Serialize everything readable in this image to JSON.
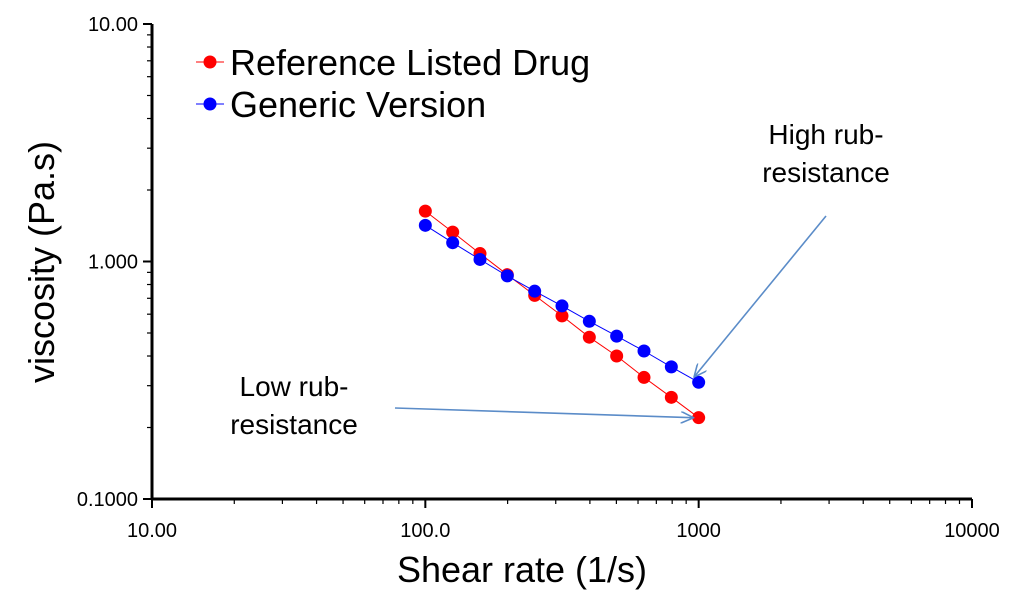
{
  "chart_data": {
    "type": "scatter",
    "x_scale": "log",
    "y_scale": "log",
    "xlim": [
      10,
      10000
    ],
    "ylim": [
      0.1,
      10
    ],
    "xlabel": "Shear rate (1/s)",
    "ylabel": "viscosity (Pa.s)",
    "x_tick_labels": [
      "10.00",
      "100.0",
      "1000",
      "10000"
    ],
    "x_tick_values": [
      10,
      100,
      1000,
      10000
    ],
    "y_tick_labels": [
      "0.1000",
      "1.000",
      "10.00"
    ],
    "y_tick_values": [
      0.1,
      1,
      10
    ],
    "grid": false,
    "legend_position": "top-left",
    "series": [
      {
        "name": "Reference Listed Drug",
        "color": "#ff0000",
        "x": [
          100,
          125.9,
          158.5,
          199.5,
          251.2,
          316.2,
          398.1,
          501.2,
          631,
          794.3,
          1000
        ],
        "y": [
          1.63,
          1.33,
          1.08,
          0.88,
          0.72,
          0.59,
          0.48,
          0.4,
          0.325,
          0.268,
          0.22
        ]
      },
      {
        "name": "Generic Version",
        "color": "#0000ff",
        "x": [
          100,
          125.9,
          158.5,
          199.5,
          251.2,
          316.2,
          398.1,
          501.2,
          631,
          794.3,
          1000
        ],
        "y": [
          1.42,
          1.2,
          1.02,
          0.87,
          0.75,
          0.65,
          0.56,
          0.485,
          0.42,
          0.36,
          0.31
        ]
      }
    ],
    "annotations": [
      {
        "lines": [
          "High rub-",
          "resistance"
        ],
        "target_series": 1,
        "target_x": 1000,
        "target_y": 0.31
      },
      {
        "lines": [
          "Low rub-",
          "resistance"
        ],
        "target_series": 0,
        "target_x": 1000,
        "target_y": 0.22
      }
    ],
    "annotation_color": "#5b8cc8"
  }
}
